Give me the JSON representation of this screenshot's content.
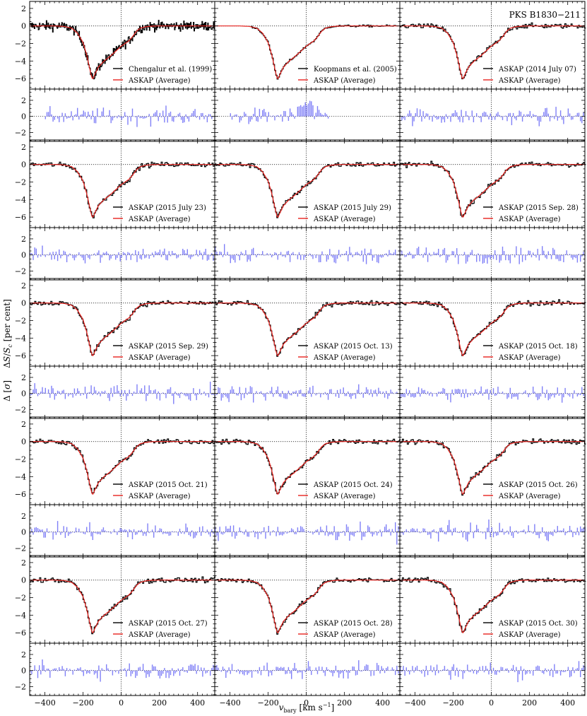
{
  "figure": {
    "corner_title": "PKS B1830−211",
    "xlabel": "v_bary [km s^-1]",
    "ylabel_spectrum": "ΔS/S_c [per cent]",
    "ylabel_residual": "Δ [σ]"
  },
  "chart_data": {
    "type": "line",
    "title": "PKS B1830−211",
    "xlabel": "v_bary [km s^-1]",
    "xlim": [
      -480,
      490
    ],
    "xticks": [
      -400,
      -200,
      0,
      200,
      400
    ],
    "spectrum_ylim": [
      -7.2,
      2.8
    ],
    "spectrum_yticks": [
      2,
      0,
      -2,
      -4,
      -6
    ],
    "residual_ylim": [
      -3.1,
      3.4
    ],
    "residual_yticks": [
      2,
      0,
      -2
    ],
    "grid": false,
    "reference_lines": [
      "y = 0 (dotted)",
      "x = 0 (dotted)"
    ],
    "legend_location": "lower-right",
    "colors": {
      "observed": "#000000",
      "average": "#e8231f",
      "residual": "#8080f7",
      "reference": "#000000"
    },
    "average_profile": {
      "x": [
        -480,
        -350,
        -300,
        -260,
        -230,
        -200,
        -180,
        -165,
        -155,
        -150,
        -140,
        -120,
        -90,
        -60,
        -30,
        0,
        40,
        60,
        80,
        100,
        130,
        160,
        200,
        300,
        490
      ],
      "y": [
        0,
        0,
        -0.05,
        -0.25,
        -0.8,
        -1.9,
        -3.4,
        -4.9,
        -5.8,
        -6.1,
        -5.6,
        -4.7,
        -4.0,
        -3.5,
        -2.9,
        -2.3,
        -1.7,
        -1.2,
        -0.6,
        -0.25,
        -0.08,
        -0.02,
        0,
        0,
        0
      ]
    },
    "panels": [
      {
        "legend_observed": "Chengalur et al. (1999)",
        "legend_average": "ASKAP (Average)"
      },
      {
        "legend_observed": "Koopmans et al. (2005)",
        "legend_average": "ASKAP (Average)"
      },
      {
        "legend_observed": "ASKAP (2014 July 07)",
        "legend_average": "ASKAP (Average)"
      },
      {
        "legend_observed": "ASKAP (2015 July 23)",
        "legend_average": "ASKAP (Average)"
      },
      {
        "legend_observed": "ASKAP (2015 July 29)",
        "legend_average": "ASKAP (Average)"
      },
      {
        "legend_observed": "ASKAP (2015 Sep. 28)",
        "legend_average": "ASKAP (Average)"
      },
      {
        "legend_observed": "ASKAP (2015 Sep. 29)",
        "legend_average": "ASKAP (Average)"
      },
      {
        "legend_observed": "ASKAP (2015 Oct. 13)",
        "legend_average": "ASKAP (Average)"
      },
      {
        "legend_observed": "ASKAP (2015 Oct. 18)",
        "legend_average": "ASKAP (Average)"
      },
      {
        "legend_observed": "ASKAP (2015 Oct. 21)",
        "legend_average": "ASKAP (Average)"
      },
      {
        "legend_observed": "ASKAP (2015 Oct. 24)",
        "legend_average": "ASKAP (Average)"
      },
      {
        "legend_observed": "ASKAP (2015 Oct. 26)",
        "legend_average": "ASKAP (Average)"
      },
      {
        "legend_observed": "ASKAP (2015 Oct. 27)",
        "legend_average": "ASKAP (Average)"
      },
      {
        "legend_observed": "ASKAP (2015 Oct. 28)",
        "legend_average": "ASKAP (Average)"
      },
      {
        "legend_observed": "ASKAP (2015 Oct. 30)",
        "legend_average": "ASKAP (Average)"
      }
    ]
  }
}
